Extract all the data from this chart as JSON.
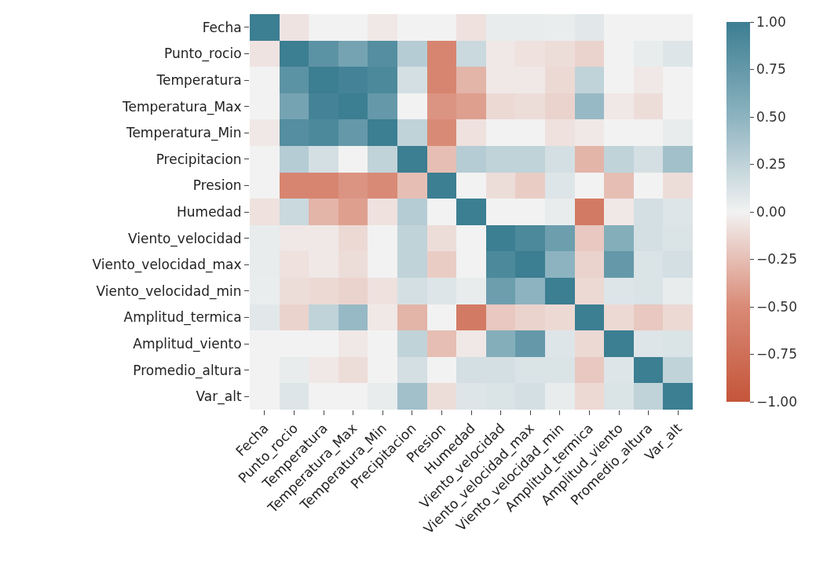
{
  "chart_data": {
    "type": "heatmap",
    "categories": [
      "Fecha",
      "Punto_rocio",
      "Temperatura",
      "Temperatura_Max",
      "Temperatura_Min",
      "Precipitacion",
      "Presion",
      "Humedad",
      "Viento_velocidad",
      "Viento_velocidad_max",
      "Viento_velocidad_min",
      "Amplitud_termica",
      "Amplitud_viento",
      "Promedio_altura",
      "Var_alt"
    ],
    "y_categories": [
      "Fecha",
      "Punto_rocio",
      "Temperatura",
      "Temperatura_Max",
      "Temperatura_Min",
      "Precipitacion",
      "Presion",
      "Humedad",
      "Viento_velocidad",
      "Viento_velocidad_max",
      "Viento_velocidad_min",
      "Amplitud_termica",
      "Amplitud_viento",
      "Promedio_altura",
      "Var_alt"
    ],
    "cells": [
      [
        1,
        -0.07,
        0,
        0,
        -0.05,
        0,
        0,
        -0.08,
        0.05,
        0.05,
        0.04,
        0.08,
        0,
        0,
        0
      ],
      [
        -0.07,
        1,
        0.8,
        0.65,
        0.85,
        0.3,
        -0.55,
        0.2,
        -0.05,
        -0.08,
        -0.1,
        -0.15,
        0,
        0.05,
        0.1
      ],
      [
        0,
        0.8,
        1,
        0.95,
        0.9,
        0.15,
        -0.55,
        -0.3,
        -0.05,
        -0.05,
        -0.12,
        0.25,
        0,
        -0.05,
        0
      ],
      [
        0,
        0.65,
        0.95,
        1,
        0.75,
        0,
        -0.45,
        -0.4,
        -0.12,
        -0.1,
        -0.15,
        0.45,
        -0.05,
        -0.1,
        0
      ],
      [
        -0.05,
        0.85,
        0.9,
        0.75,
        1,
        0.25,
        -0.5,
        -0.08,
        0,
        0,
        -0.08,
        -0.05,
        0,
        0,
        0.05
      ],
      [
        0,
        0.3,
        0.15,
        0,
        0.25,
        1,
        -0.25,
        0.3,
        0.25,
        0.25,
        0.15,
        -0.3,
        0.25,
        0.15,
        0.4
      ],
      [
        0,
        -0.55,
        -0.55,
        -0.45,
        -0.5,
        -0.25,
        1,
        0,
        -0.1,
        -0.18,
        0.1,
        0,
        -0.25,
        0,
        -0.1
      ],
      [
        -0.08,
        0.2,
        -0.3,
        -0.4,
        -0.08,
        0.3,
        0,
        1,
        0,
        0,
        0.05,
        -0.65,
        -0.05,
        0.15,
        0.1
      ],
      [
        0.05,
        -0.05,
        -0.05,
        -0.12,
        0,
        0.25,
        -0.1,
        0,
        1,
        0.9,
        0.7,
        -0.2,
        0.55,
        0.15,
        0.12
      ],
      [
        0.05,
        -0.08,
        -0.05,
        -0.1,
        0,
        0.25,
        -0.18,
        0,
        0.9,
        1,
        0.5,
        -0.15,
        0.75,
        0.12,
        0.15
      ],
      [
        0.04,
        -0.1,
        -0.12,
        -0.15,
        -0.08,
        0.15,
        0.1,
        0.05,
        0.7,
        0.5,
        1,
        -0.12,
        0.1,
        0.12,
        0.05
      ],
      [
        0.08,
        -0.15,
        0.25,
        0.45,
        -0.05,
        -0.3,
        0,
        -0.65,
        -0.2,
        -0.15,
        -0.12,
        1,
        -0.12,
        -0.2,
        -0.12
      ],
      [
        0,
        0,
        0,
        -0.05,
        0,
        0.25,
        -0.25,
        -0.05,
        0.55,
        0.75,
        0.1,
        -0.12,
        1,
        0.1,
        0.12
      ],
      [
        0,
        0.05,
        -0.05,
        -0.1,
        0,
        0.15,
        0,
        0.15,
        0.15,
        0.12,
        0.12,
        -0.2,
        0.1,
        1,
        0.25
      ],
      [
        0,
        0.1,
        0,
        0,
        0.05,
        0.4,
        -0.1,
        0.1,
        0.12,
        0.15,
        0.05,
        -0.12,
        0.12,
        0.25,
        1
      ]
    ],
    "clim": [
      -1,
      1
    ],
    "cticks": [
      {
        "value": -1,
        "label": "−1.00"
      },
      {
        "value": -0.75,
        "label": "−0.75"
      },
      {
        "value": -0.5,
        "label": "−0.50"
      },
      {
        "value": -0.25,
        "label": "−0.25"
      },
      {
        "value": 0,
        "label": "0.00"
      },
      {
        "value": 0.25,
        "label": "0.25"
      },
      {
        "value": 0.5,
        "label": "0.50"
      },
      {
        "value": 0.75,
        "label": "0.75"
      },
      {
        "value": 1,
        "label": "1.00"
      }
    ]
  }
}
